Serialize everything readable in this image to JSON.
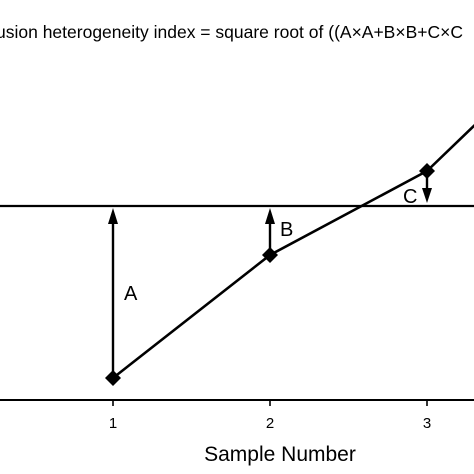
{
  "formula_text": "usion heterogeneity index = square root of ((A×A+B×B+C×C",
  "x_axis": {
    "label": "Sample Number",
    "tick_labels": [
      "1",
      "2",
      "3"
    ]
  },
  "labels": {
    "deviation_a": "A",
    "deviation_b": "B",
    "deviation_c": "C"
  },
  "reference_line": "horizontal mean line crossed by sample curve",
  "colors": {
    "ink": "#000000",
    "background": "#ffffff"
  }
}
